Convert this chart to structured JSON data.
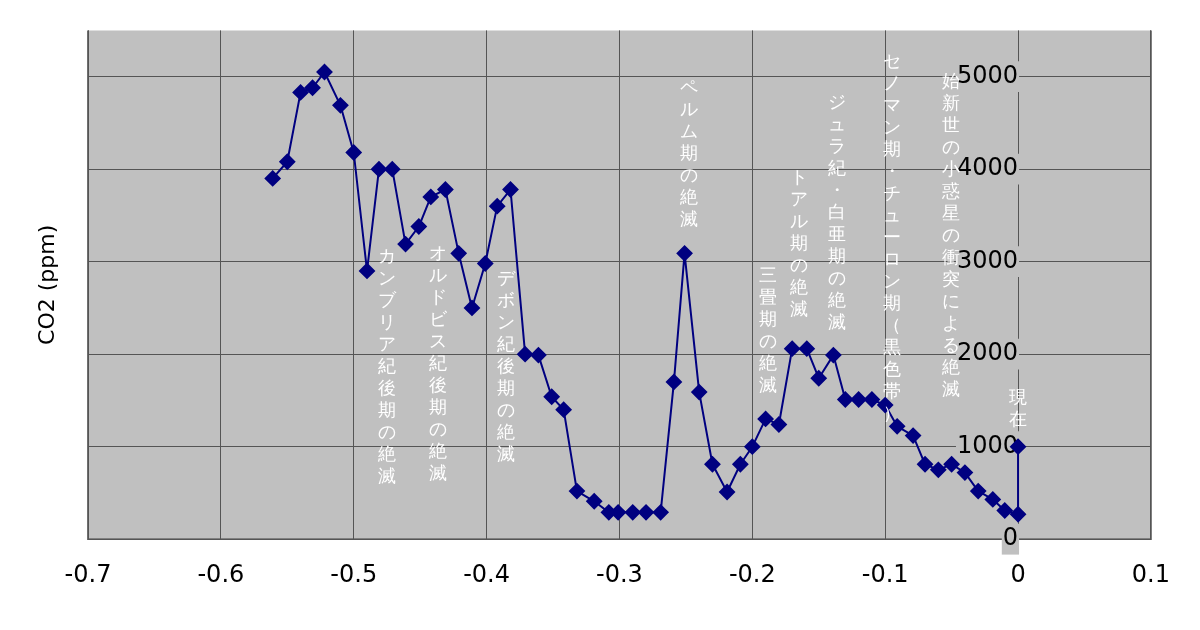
{
  "chart_data": {
    "type": "line",
    "ylabel": "CO2 (ppm)",
    "x": [
      -0.561,
      -0.55,
      -0.54,
      -0.531,
      -0.522,
      -0.51,
      -0.5,
      -0.49,
      -0.481,
      -0.471,
      -0.461,
      -0.451,
      -0.442,
      -0.431,
      -0.421,
      -0.411,
      -0.401,
      -0.392,
      -0.382,
      -0.371,
      -0.361,
      -0.351,
      -0.342,
      -0.332,
      -0.319,
      -0.308,
      -0.301,
      -0.29,
      -0.28,
      -0.269,
      -0.259,
      -0.251,
      -0.24,
      -0.23,
      -0.219,
      -0.209,
      -0.2,
      -0.19,
      -0.18,
      -0.17,
      -0.159,
      -0.15,
      -0.139,
      -0.13,
      -0.12,
      -0.11,
      -0.1,
      -0.091,
      -0.079,
      -0.07,
      -0.06,
      -0.05,
      -0.04,
      -0.03,
      -0.019,
      -0.01,
      0,
      0
    ],
    "series": [
      {
        "color": "#000080",
        "values": [
          3900,
          4080,
          4830,
          4880,
          5050,
          4690,
          4180,
          2900,
          4000,
          4000,
          3190,
          3380,
          3700,
          3780,
          3090,
          2500,
          2980,
          3600,
          3780,
          2000,
          1990,
          1540,
          1400,
          520,
          410,
          290,
          290,
          290,
          290,
          290,
          1700,
          3090,
          1590,
          810,
          510,
          810,
          1000,
          1300,
          1240,
          2060,
          2060,
          1740,
          1990,
          1510,
          1510,
          1510,
          1450,
          1220,
          1120,
          810,
          750,
          810,
          720,
          520,
          430,
          310,
          270,
          1000
        ]
      }
    ],
    "xlim": [
      -0.7,
      0.1
    ],
    "xticks": [
      -0.7,
      -0.6,
      -0.5,
      -0.4,
      -0.3,
      -0.2,
      -0.1,
      0,
      0.1
    ],
    "ylim": [
      0,
      5500
    ],
    "yticks": [
      0,
      1000,
      2000,
      3000,
      4000,
      5000
    ],
    "grid": true,
    "marker": "diamond",
    "line_style": "solid",
    "legend": false,
    "annotations": [
      "カンブリア紀後期の絶滅",
      "オルドビス紀後期の絶滅",
      "デボン紀後期の絶滅",
      "ペルム期の絶滅",
      "三畳期の絶滅",
      "トアル期の絶滅",
      "ジュラ紀・白亜期の絶滅",
      "セノマン期・チューロン期（黒色帯）",
      "始新世の小惑星の衝突による絶滅",
      "現在"
    ]
  }
}
